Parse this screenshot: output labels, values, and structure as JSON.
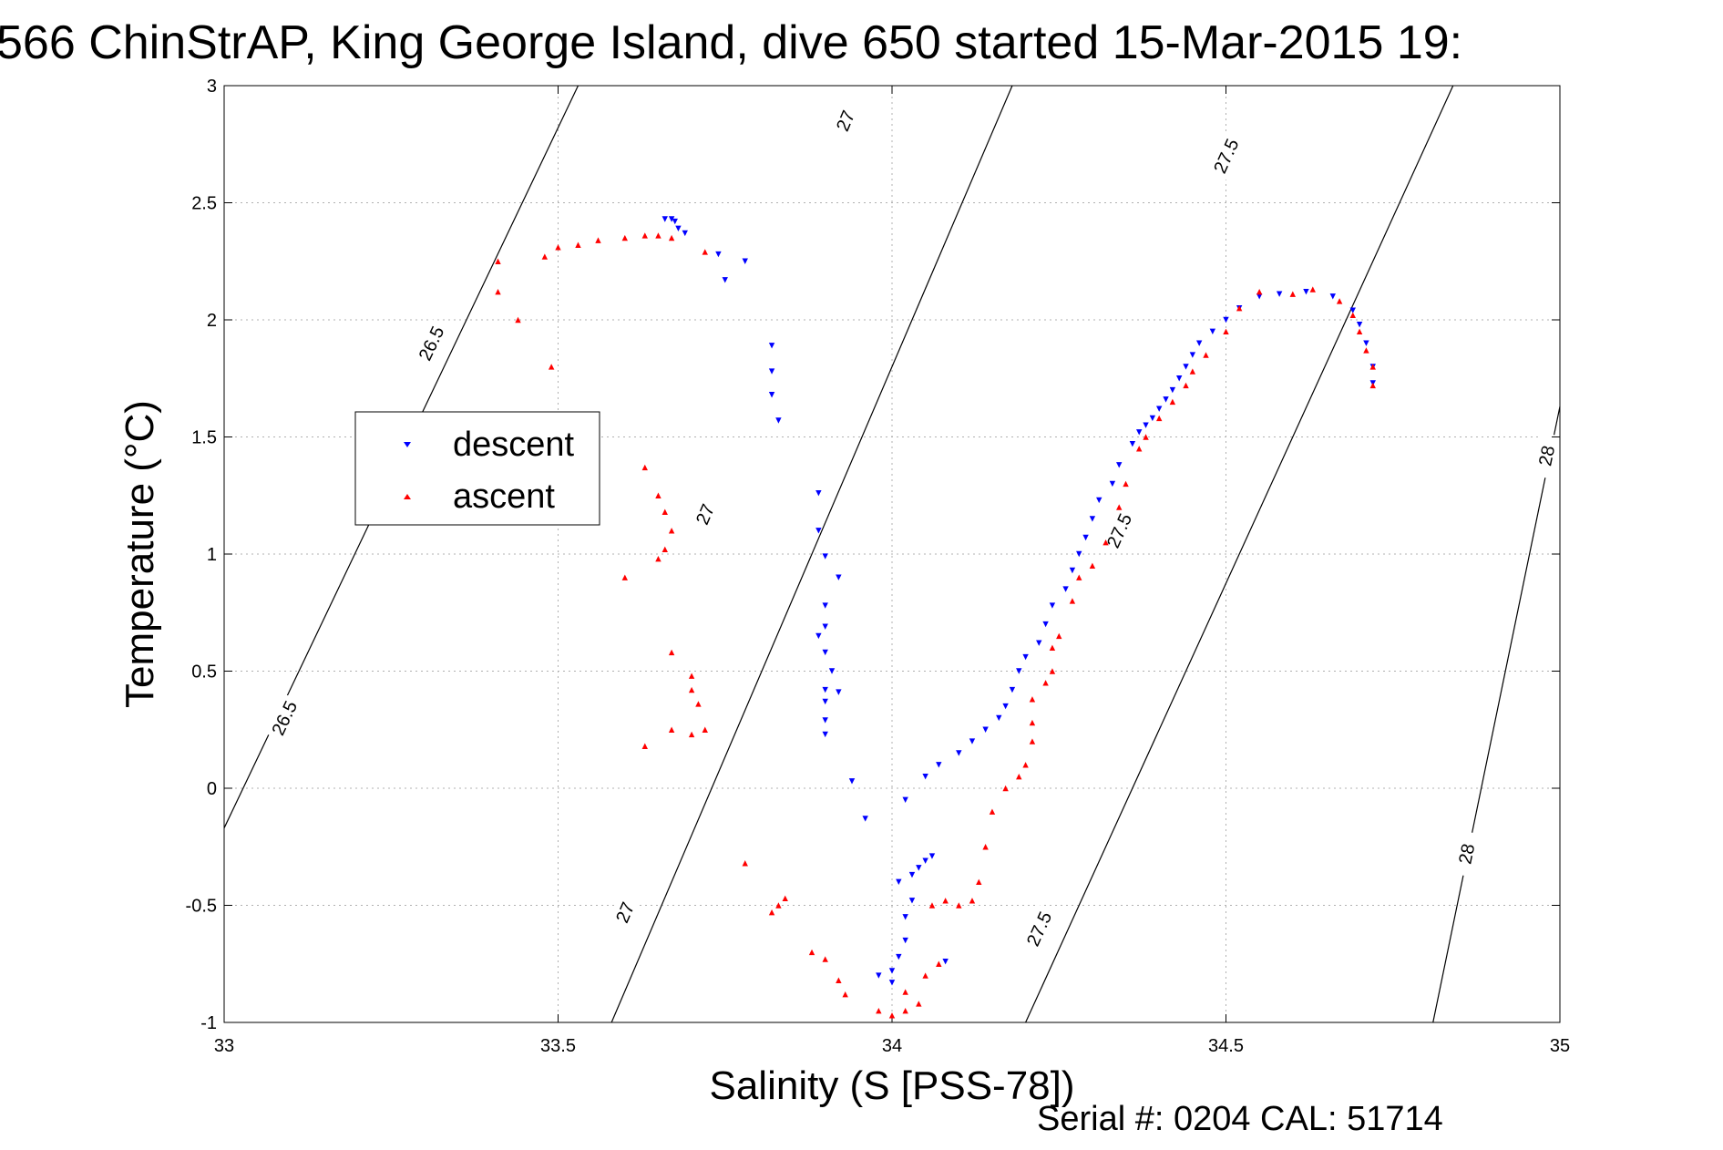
{
  "chart_data": {
    "type": "scatter",
    "title": "566 ChinStrAP, King George Island, dive 650 started 15-Mar-2015 19:",
    "xlabel": "Salinity (S [PSS-78])",
    "ylabel": "Temperature (°C)",
    "xlim": [
      33,
      35
    ],
    "ylim": [
      -1,
      3
    ],
    "xticks": [
      33,
      33.5,
      34,
      34.5,
      35
    ],
    "yticks": [
      -1,
      -0.5,
      0,
      0.5,
      1,
      1.5,
      2,
      2.5,
      3
    ],
    "x_tick_labels": [
      "33",
      "33.5",
      "34",
      "34.5",
      "35"
    ],
    "y_tick_labels": [
      "-1",
      "-0.5",
      "0",
      "0.5",
      "1",
      "1.5",
      "2",
      "2.5",
      "3"
    ],
    "grid": true,
    "legend_position": "left-middle",
    "isopycnals": [
      {
        "label": "26.5",
        "points": [
          [
            33.0,
            -0.17
          ],
          [
            33.53,
            3.0
          ]
        ],
        "labels_at": [
          [
            33.09,
            0.3
          ],
          [
            33.31,
            1.9
          ]
        ]
      },
      {
        "label": "27",
        "points": [
          [
            33.58,
            -1.0
          ],
          [
            34.18,
            3.0
          ]
        ],
        "labels_at": [
          [
            33.6,
            -0.53
          ],
          [
            33.72,
            1.17
          ],
          [
            33.93,
            2.85
          ]
        ]
      },
      {
        "label": "27.5",
        "points": [
          [
            34.2,
            -1.0
          ],
          [
            34.84,
            3.0
          ]
        ],
        "labels_at": [
          [
            34.22,
            -0.6
          ],
          [
            34.34,
            1.1
          ],
          [
            34.5,
            2.7
          ]
        ]
      },
      {
        "label": "28",
        "points": [
          [
            34.81,
            -1.0
          ],
          [
            35.0,
            1.63
          ]
        ],
        "labels_at": [
          [
            34.86,
            -0.28
          ],
          [
            34.98,
            1.42
          ]
        ]
      }
    ],
    "series": [
      {
        "name": "descent",
        "color": "#0000ff",
        "marker": "triangle-down",
        "points": [
          [
            33.66,
            2.43
          ],
          [
            33.67,
            2.43
          ],
          [
            33.675,
            2.42
          ],
          [
            33.68,
            2.39
          ],
          [
            33.69,
            2.37
          ],
          [
            33.74,
            2.28
          ],
          [
            33.78,
            2.25
          ],
          [
            33.75,
            2.17
          ],
          [
            33.82,
            1.89
          ],
          [
            33.82,
            1.78
          ],
          [
            33.82,
            1.68
          ],
          [
            33.83,
            1.57
          ],
          [
            33.89,
            1.26
          ],
          [
            33.89,
            1.1
          ],
          [
            33.9,
            0.99
          ],
          [
            33.92,
            0.9
          ],
          [
            33.9,
            0.78
          ],
          [
            33.9,
            0.69
          ],
          [
            33.89,
            0.65
          ],
          [
            33.9,
            0.58
          ],
          [
            33.91,
            0.5
          ],
          [
            33.9,
            0.42
          ],
          [
            33.9,
            0.37
          ],
          [
            33.92,
            0.41
          ],
          [
            33.9,
            0.29
          ],
          [
            33.9,
            0.23
          ],
          [
            33.94,
            0.03
          ],
          [
            33.96,
            -0.13
          ],
          [
            33.98,
            -0.8
          ],
          [
            34.0,
            -0.83
          ],
          [
            34.0,
            -0.78
          ],
          [
            34.01,
            -0.72
          ],
          [
            34.02,
            -0.65
          ],
          [
            34.02,
            -0.55
          ],
          [
            34.03,
            -0.48
          ],
          [
            34.01,
            -0.4
          ],
          [
            34.03,
            -0.37
          ],
          [
            34.04,
            -0.34
          ],
          [
            34.05,
            -0.31
          ],
          [
            34.06,
            -0.29
          ],
          [
            34.08,
            -0.74
          ],
          [
            34.02,
            -0.05
          ],
          [
            34.05,
            0.05
          ],
          [
            34.07,
            0.1
          ],
          [
            34.1,
            0.15
          ],
          [
            34.12,
            0.2
          ],
          [
            34.14,
            0.25
          ],
          [
            34.16,
            0.3
          ],
          [
            34.17,
            0.35
          ],
          [
            34.18,
            0.42
          ],
          [
            34.19,
            0.5
          ],
          [
            34.2,
            0.56
          ],
          [
            34.22,
            0.62
          ],
          [
            34.23,
            0.7
          ],
          [
            34.24,
            0.78
          ],
          [
            34.26,
            0.85
          ],
          [
            34.27,
            0.93
          ],
          [
            34.28,
            1.0
          ],
          [
            34.29,
            1.07
          ],
          [
            34.3,
            1.15
          ],
          [
            34.31,
            1.23
          ],
          [
            34.33,
            1.3
          ],
          [
            34.34,
            1.38
          ],
          [
            34.36,
            1.47
          ],
          [
            34.37,
            1.52
          ],
          [
            34.38,
            1.55
          ],
          [
            34.39,
            1.58
          ],
          [
            34.4,
            1.62
          ],
          [
            34.41,
            1.66
          ],
          [
            34.42,
            1.7
          ],
          [
            34.43,
            1.75
          ],
          [
            34.44,
            1.8
          ],
          [
            34.45,
            1.85
          ],
          [
            34.46,
            1.9
          ],
          [
            34.48,
            1.95
          ],
          [
            34.5,
            2.0
          ],
          [
            34.52,
            2.05
          ],
          [
            34.55,
            2.1
          ],
          [
            34.58,
            2.11
          ],
          [
            34.62,
            2.12
          ],
          [
            34.66,
            2.1
          ],
          [
            34.69,
            2.04
          ],
          [
            34.7,
            1.98
          ],
          [
            34.71,
            1.9
          ],
          [
            34.72,
            1.8
          ],
          [
            34.72,
            1.73
          ]
        ]
      },
      {
        "name": "ascent",
        "color": "#ff0000",
        "marker": "triangle-up",
        "points": [
          [
            33.41,
            2.25
          ],
          [
            33.41,
            2.12
          ],
          [
            33.44,
            2.0
          ],
          [
            33.48,
            2.27
          ],
          [
            33.49,
            1.8
          ],
          [
            33.5,
            2.31
          ],
          [
            33.53,
            2.32
          ],
          [
            33.56,
            2.34
          ],
          [
            33.6,
            2.35
          ],
          [
            33.63,
            2.36
          ],
          [
            33.65,
            2.36
          ],
          [
            33.67,
            2.35
          ],
          [
            33.72,
            2.29
          ],
          [
            33.63,
            1.37
          ],
          [
            33.65,
            1.25
          ],
          [
            33.66,
            1.18
          ],
          [
            33.67,
            1.1
          ],
          [
            33.66,
            1.02
          ],
          [
            33.65,
            0.98
          ],
          [
            33.6,
            0.9
          ],
          [
            33.67,
            0.58
          ],
          [
            33.7,
            0.48
          ],
          [
            33.7,
            0.42
          ],
          [
            33.71,
            0.36
          ],
          [
            33.72,
            0.25
          ],
          [
            33.67,
            0.25
          ],
          [
            33.7,
            0.23
          ],
          [
            33.63,
            0.18
          ],
          [
            33.78,
            -0.32
          ],
          [
            33.83,
            -0.5
          ],
          [
            33.82,
            -0.53
          ],
          [
            33.84,
            -0.47
          ],
          [
            33.88,
            -0.7
          ],
          [
            33.9,
            -0.73
          ],
          [
            33.92,
            -0.82
          ],
          [
            33.93,
            -0.88
          ],
          [
            33.98,
            -0.95
          ],
          [
            34.0,
            -0.97
          ],
          [
            34.02,
            -0.95
          ],
          [
            34.04,
            -0.92
          ],
          [
            34.02,
            -0.87
          ],
          [
            34.05,
            -0.8
          ],
          [
            34.07,
            -0.75
          ],
          [
            34.06,
            -0.5
          ],
          [
            34.08,
            -0.48
          ],
          [
            34.1,
            -0.5
          ],
          [
            34.12,
            -0.48
          ],
          [
            34.13,
            -0.4
          ],
          [
            34.14,
            -0.25
          ],
          [
            34.15,
            -0.1
          ],
          [
            34.17,
            0.0
          ],
          [
            34.19,
            0.05
          ],
          [
            34.2,
            0.1
          ],
          [
            34.21,
            0.2
          ],
          [
            34.21,
            0.28
          ],
          [
            34.21,
            0.38
          ],
          [
            34.23,
            0.45
          ],
          [
            34.24,
            0.5
          ],
          [
            34.24,
            0.6
          ],
          [
            34.25,
            0.65
          ],
          [
            34.27,
            0.8
          ],
          [
            34.28,
            0.9
          ],
          [
            34.3,
            0.95
          ],
          [
            34.32,
            1.05
          ],
          [
            34.34,
            1.2
          ],
          [
            34.35,
            1.3
          ],
          [
            34.37,
            1.45
          ],
          [
            34.38,
            1.5
          ],
          [
            34.4,
            1.58
          ],
          [
            34.42,
            1.65
          ],
          [
            34.44,
            1.72
          ],
          [
            34.45,
            1.78
          ],
          [
            34.47,
            1.85
          ],
          [
            34.5,
            1.95
          ],
          [
            34.52,
            2.05
          ],
          [
            34.55,
            2.12
          ],
          [
            34.6,
            2.11
          ],
          [
            34.63,
            2.13
          ],
          [
            34.67,
            2.08
          ],
          [
            34.69,
            2.02
          ],
          [
            34.7,
            1.95
          ],
          [
            34.71,
            1.87
          ],
          [
            34.72,
            1.8
          ],
          [
            34.72,
            1.72
          ]
        ]
      }
    ],
    "footer": "Serial #: 0204  CAL: 51714"
  }
}
